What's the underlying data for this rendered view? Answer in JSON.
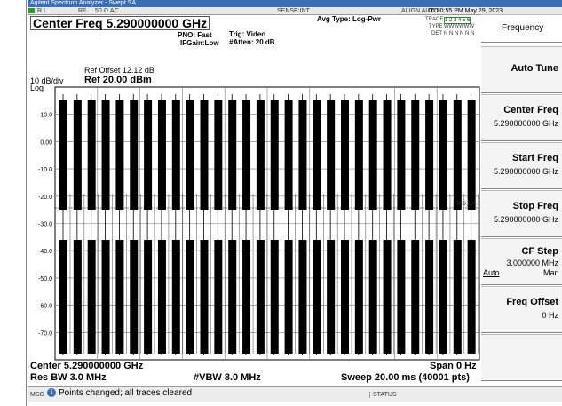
{
  "title_bar": "Agilent Spectrum Analyzer - Swept SA",
  "status_row": {
    "rl": "R L",
    "rf": "RF",
    "impedance": "50 Ω  AC",
    "sense": "SENSE:INT",
    "align": "ALIGN AUTO",
    "datetime": "06:00:55 PM May 29, 2023"
  },
  "header": {
    "center_freq": "Center Freq 5.290000000 GHz",
    "pno": "PNO: Fast",
    "ifgain": "IFGain:Low",
    "trig": "Trig: Video",
    "atten": "#Atten: 20 dB",
    "avg_type": "Avg Type: Log-Pwr",
    "trace_label": "TRACE",
    "trace_values": "1 2 3 4 5 6",
    "type_label": "TYPE",
    "type_values": "WWWWWW",
    "det_label": "DET",
    "det_values": "N N N N N N"
  },
  "graph": {
    "ref_offset": "Ref Offset 12.12 dB",
    "scale": "10 dB/div",
    "ref_level": "Ref 20.00 dBm",
    "log": "Log",
    "y_labels": [
      "10.0",
      "0.00",
      "-10.0",
      "-20.0",
      "-30.0",
      "-40.0",
      "-50.0",
      "-60.0",
      "-70.0"
    ],
    "trig_lvl": "TRIG LVL"
  },
  "footer": {
    "center": "Center 5.290000000 GHz",
    "span": "Span 0 Hz",
    "res_bw": "Res BW 3.0 MHz",
    "vbw": "#VBW 8.0 MHz",
    "sweep": "Sweep  20.00 ms (40001 pts)"
  },
  "message": {
    "label": "MSG",
    "text": "Points changed; all traces cleared",
    "status": "STATUS"
  },
  "softkeys": {
    "menu": "Frequency",
    "keys": [
      {
        "label": "Auto Tune"
      },
      {
        "label": "Center Freq",
        "value": "5.290000000 GHz"
      },
      {
        "label": "Start Freq",
        "value": "5.290000000 GHz"
      },
      {
        "label": "Stop Freq",
        "value": "5.290000000 GHz"
      },
      {
        "label": "CF Step",
        "value": "3.000000 MHz",
        "options": [
          "Auto",
          "Man"
        ]
      },
      {
        "label": "Freq Offset",
        "value": "0 Hz"
      }
    ]
  }
}
